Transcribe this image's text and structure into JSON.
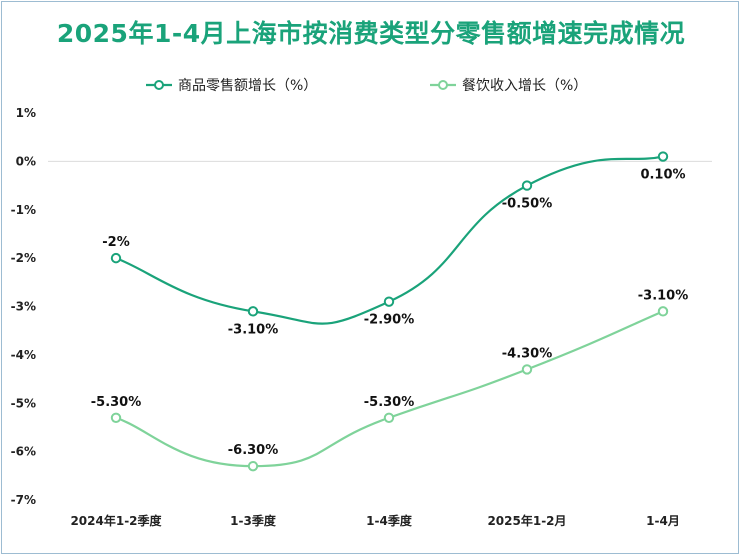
{
  "chart_data": {
    "type": "line",
    "title": "2025年1-4月上海市按消费类型分零售额增速完成情况",
    "categories": [
      "2024年1-2季度",
      "1-3季度",
      "1-4季度",
      "2025年1-2月",
      "1-4月"
    ],
    "series": [
      {
        "name": "商品零售额增长（%）",
        "values": [
          -2,
          -3.1,
          -2.9,
          -0.5,
          0.1
        ],
        "labels": [
          "-2%",
          "-3.10%",
          "-2.90%",
          "-0.50%",
          "0.10%"
        ],
        "color": "#1aa37a"
      },
      {
        "name": "餐饮收入增长（%）",
        "values": [
          -5.3,
          -6.3,
          -5.3,
          -4.3,
          -3.1
        ],
        "labels": [
          "-5.30%",
          "-6.30%",
          "-5.30%",
          "-4.30%",
          "-3.10%"
        ],
        "color": "#7fd39a"
      }
    ],
    "yticks": [
      "1%",
      "0%",
      "-1%",
      "-2%",
      "-3%",
      "-4%",
      "-5%",
      "-6%",
      "-7%"
    ],
    "ylim": [
      -7,
      1
    ],
    "legend_position": "top",
    "grid": false,
    "zero_line": true,
    "smooth": true
  }
}
